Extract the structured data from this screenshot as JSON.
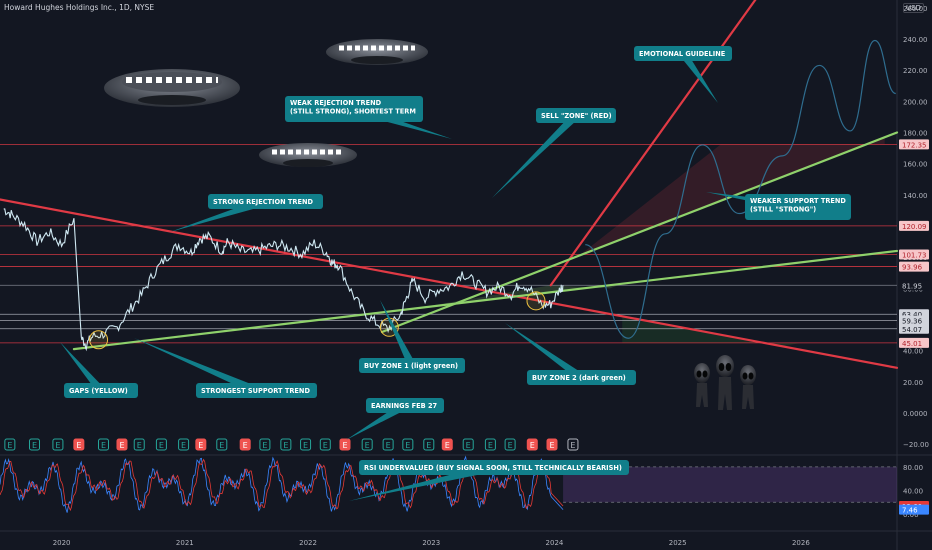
{
  "header": {
    "symbol_title": "Howard Hughes Holdings Inc., 1D, NYSE",
    "currency": "USD"
  },
  "colors": {
    "background": "#131722",
    "price_line": "#cfe8f2",
    "resistance_red": "#e03a45",
    "support_green": "#8fd16b",
    "callout_teal": "#117e8a",
    "projection_blue": "#2f6d8f",
    "rsi_purple": "#7b4ba8",
    "rsi_blue": "#3a86ff",
    "rsi_red": "#e53935",
    "earnings_green": "#26a69a",
    "earnings_red": "#ef5350"
  },
  "chart_data": {
    "type": "line",
    "title": "Howard Hughes Holdings Inc., 1D, NYSE",
    "xlabel": "",
    "ylabel": "",
    "x_ticks": [
      "2020",
      "2021",
      "2022",
      "2023",
      "2024",
      "2025",
      "2026"
    ],
    "y_ticks": [
      260,
      240,
      220,
      200,
      180,
      160,
      140,
      120,
      100,
      80,
      60,
      40,
      20,
      0,
      -20
    ],
    "y_tick_labels": [
      "260.00",
      "240.00",
      "220.00",
      "200.00",
      "180.00",
      "160.00",
      "140.00",
      "120.00",
      "100.00",
      "80.00",
      "60.00",
      "40.00",
      "20.00",
      "0.0000",
      "−20.00"
    ],
    "ylim": [
      -25,
      265
    ],
    "xlim": [
      2019.5,
      2026.78
    ],
    "grid": false,
    "series": [
      {
        "name": "",
        "x": [
          2019.53,
          2019.6,
          2019.7,
          2019.8,
          2019.9,
          2020.0,
          2020.1,
          2020.16,
          2020.2,
          2020.25,
          2020.35,
          2020.45,
          2020.55,
          2020.65,
          2020.75,
          2020.85,
          2020.95,
          2021.05,
          2021.12,
          2021.2,
          2021.3,
          2021.35,
          2021.45,
          2021.55,
          2021.65,
          2021.75,
          2021.85,
          2021.95,
          2022.05,
          2022.15,
          2022.2,
          2022.25,
          2022.35,
          2022.45,
          2022.55,
          2022.65,
          2022.75,
          2022.8,
          2022.85,
          2022.95,
          2023.05,
          2023.15,
          2023.25,
          2023.35,
          2023.45,
          2023.55,
          2023.65,
          2023.72,
          2023.8,
          2023.9,
          2023.97,
          2024.05,
          2024.07
        ],
        "y": [
          131,
          127,
          121,
          110,
          116,
          108,
          125,
          48,
          44,
          49,
          51,
          55,
          66,
          76,
          90,
          100,
          108,
          103,
          112,
          113,
          104,
          110,
          104,
          103,
          106,
          108,
          106,
          102,
          109,
          103,
          96,
          95,
          78,
          65,
          58,
          54,
          63,
          74,
          85,
          74,
          79,
          81,
          90,
          84,
          78,
          81,
          76,
          83,
          80,
          69,
          70,
          80,
          81.95
        ]
      }
    ],
    "price_levels": [
      {
        "value": 172.35,
        "label": "172.35",
        "color": "#e03a45"
      },
      {
        "value": 120.09,
        "label": "120.09",
        "color": "#e03a45"
      },
      {
        "value": 101.73,
        "label": "101.73",
        "color": "#e03a45"
      },
      {
        "value": 93.96,
        "label": "93.96",
        "color": "#e03a45"
      },
      {
        "value": 81.95,
        "label": "81.95",
        "color": "#131722"
      },
      {
        "value": 63.4,
        "label": "63.40",
        "color": "#131722"
      },
      {
        "value": 59.36,
        "label": "59.36",
        "color": "#131722"
      },
      {
        "value": 54.07,
        "label": "54.07",
        "color": "#131722"
      },
      {
        "value": 45.01,
        "label": "45.01",
        "color": "#e03a45"
      }
    ],
    "trend_lines": [
      {
        "label": "STRONG REJECTION TREND",
        "color": "#e03a45",
        "points": [
          [
            2019.5,
            137
          ],
          [
            2026.78,
            29
          ]
        ]
      },
      {
        "label": "WEAK REJECTION TREND (STILL STRONG), SHORTEST TERM",
        "color": "#e03a45",
        "points": [
          [
            2023.97,
            82
          ],
          [
            2025.72,
            275
          ]
        ]
      },
      {
        "label": "STRONGEST SUPPORT TREND",
        "color": "#8fd16b",
        "points": [
          [
            2020.1,
            41
          ],
          [
            2026.78,
            104
          ]
        ]
      },
      {
        "label": "WEAKER SUPPORT TREND (STILL \"STRONG\")",
        "color": "#8fd16b",
        "points": [
          [
            2022.6,
            52
          ],
          [
            2026.78,
            180
          ]
        ]
      }
    ],
    "zones": [
      {
        "label": "SELL \"ZONE\" (RED)",
        "color": "#e03a45"
      },
      {
        "label": "BUY ZONE 1 (light green)",
        "color": "#8fd16b"
      },
      {
        "label": "BUY ZONE 2 (dark green)",
        "color": "#2e7d32"
      }
    ],
    "projection": {
      "label": "EMOTIONAL GUIDELINE",
      "x": [
        2024.25,
        2024.6,
        2024.9,
        2025.2,
        2025.5,
        2025.85,
        2026.15,
        2026.4,
        2026.6,
        2026.77
      ],
      "y": [
        108,
        48,
        115,
        172,
        128,
        165,
        223,
        181,
        239,
        205
      ]
    },
    "annotations": [
      "STRONG REJECTION TREND",
      "WEAK REJECTION TREND\n(STILL STRONG), SHORTEST TERM",
      "SELL \"ZONE\" (RED)",
      "EMOTIONAL GUIDELINE",
      "WEAKER SUPPORT TREND\n(STILL \"STRONG\")",
      "GAPS (YELLOW)",
      "STRONGEST SUPPORT TREND",
      "BUY ZONE 1 (light green)",
      "BUY ZONE 2 (dark green)",
      "EARNINGS FEB 27",
      "RSI UNDERVALUED (BUY SIGNAL SOON, STILL TECHNICALLY BEARISH)"
    ],
    "earnings_markers": {
      "x": [
        2019.58,
        2019.78,
        2019.97,
        2020.14,
        2020.34,
        2020.49,
        2020.63,
        2020.81,
        2020.99,
        2021.13,
        2021.3,
        2021.49,
        2021.65,
        2021.82,
        2021.98,
        2022.14,
        2022.3,
        2022.48,
        2022.65,
        2022.81,
        2022.98,
        2023.13,
        2023.3,
        2023.48,
        2023.64,
        2023.82,
        2023.98,
        2024.15
      ],
      "kind": [
        "beat",
        "beat",
        "beat",
        "miss",
        "beat",
        "miss",
        "beat",
        "beat",
        "beat",
        "miss",
        "beat",
        "miss",
        "beat",
        "beat",
        "beat",
        "beat",
        "miss",
        "beat",
        "beat",
        "beat",
        "beat",
        "miss",
        "beat",
        "beat",
        "beat",
        "miss",
        "miss",
        "upcoming"
      ],
      "symbol": "E"
    },
    "rsi": {
      "y_ticks": [
        80,
        40,
        0
      ],
      "y_tick_labels": [
        "80.00",
        "40.00",
        "0.00"
      ],
      "ylim": [
        -5,
        95
      ],
      "band": [
        20,
        80
      ],
      "current_values": [
        {
          "value": 13.6,
          "label": "13.60",
          "color": "#e53935"
        },
        {
          "value": 7.46,
          "label": "7.46",
          "color": "#3a86ff"
        }
      ]
    }
  }
}
